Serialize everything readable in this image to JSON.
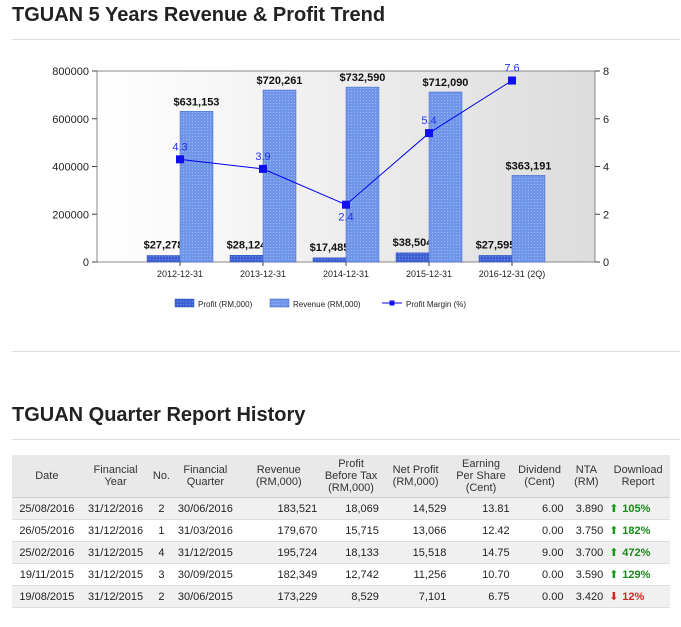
{
  "page": {
    "chart_title": "TGUAN 5 Years Revenue & Profit Trend",
    "table_title": "TGUAN Quarter Report History"
  },
  "colors": {
    "revenue_bar": "#6b8fe6",
    "profit_bar": "#3a5fcd",
    "margin_line": "#0000ee"
  },
  "chart_data": {
    "type": "bar",
    "categories": [
      "2012-12-31",
      "2013-12-31",
      "2014-12-31",
      "2015-12-31",
      "2016-12-31 (2Q)"
    ],
    "series": [
      {
        "name": "Profit (RM,000)",
        "kind": "bar",
        "axis": "left",
        "values": [
          27278,
          28124,
          17485,
          38504,
          27595
        ],
        "labels": [
          "$27,278",
          "$28,124",
          "$17,485",
          "$38,504",
          "$27,595"
        ]
      },
      {
        "name": "Revenue (RM,000)",
        "kind": "bar",
        "axis": "left",
        "values": [
          631153,
          720261,
          732590,
          712090,
          363191
        ],
        "labels": [
          "$631,153",
          "$720,261",
          "$732,590",
          "$712,090",
          "$363,191"
        ]
      },
      {
        "name": "Profit Margin (%)",
        "kind": "line",
        "axis": "right",
        "values": [
          4.3,
          3.9,
          2.4,
          5.4,
          7.6
        ],
        "labels": [
          "4.3",
          "3.9",
          "2.4",
          "5.4",
          "7.6"
        ]
      }
    ],
    "y_left_ticks": [
      "0",
      "200000",
      "400000",
      "600000",
      "800000"
    ],
    "ylim_left": [
      0,
      800000
    ],
    "y_right_ticks": [
      "0",
      "2",
      "4",
      "6",
      "8"
    ],
    "ylim_right": [
      0,
      8
    ],
    "grid": false,
    "legend_position": "bottom"
  },
  "table": {
    "headers": [
      "Date",
      "Financial Year",
      "No.",
      "Financial Quarter",
      "Revenue (RM,000)",
      "Profit Before Tax (RM,000)",
      "Net Profit (RM,000)",
      "Earning Per Share (Cent)",
      "Dividend (Cent)",
      "NTA (RM)",
      "Download Report"
    ],
    "rows": [
      {
        "date": "25/08/2016",
        "fy": "31/12/2016",
        "no": "2",
        "fq": "30/06/2016",
        "revenue": "183,521",
        "pbt": "18,069",
        "net_profit": "14,529",
        "eps": "13.81",
        "dividend": "6.00",
        "nta": "3.890",
        "change": "105%",
        "direction": "up"
      },
      {
        "date": "26/05/2016",
        "fy": "31/12/2016",
        "no": "1",
        "fq": "31/03/2016",
        "revenue": "179,670",
        "pbt": "15,715",
        "net_profit": "13,066",
        "eps": "12.42",
        "dividend": "0.00",
        "nta": "3.750",
        "change": "182%",
        "direction": "up"
      },
      {
        "date": "25/02/2016",
        "fy": "31/12/2015",
        "no": "4",
        "fq": "31/12/2015",
        "revenue": "195,724",
        "pbt": "18,133",
        "net_profit": "15,518",
        "eps": "14.75",
        "dividend": "9.00",
        "nta": "3.700",
        "change": "472%",
        "direction": "up"
      },
      {
        "date": "19/11/2015",
        "fy": "31/12/2015",
        "no": "3",
        "fq": "30/09/2015",
        "revenue": "182,349",
        "pbt": "12,742",
        "net_profit": "11,256",
        "eps": "10.70",
        "dividend": "0.00",
        "nta": "3.590",
        "change": "129%",
        "direction": "up"
      },
      {
        "date": "19/08/2015",
        "fy": "31/12/2015",
        "no": "2",
        "fq": "30/06/2015",
        "revenue": "173,229",
        "pbt": "8,529",
        "net_profit": "7,101",
        "eps": "6.75",
        "dividend": "0.00",
        "nta": "3.420",
        "change": "12%",
        "direction": "down"
      }
    ]
  }
}
